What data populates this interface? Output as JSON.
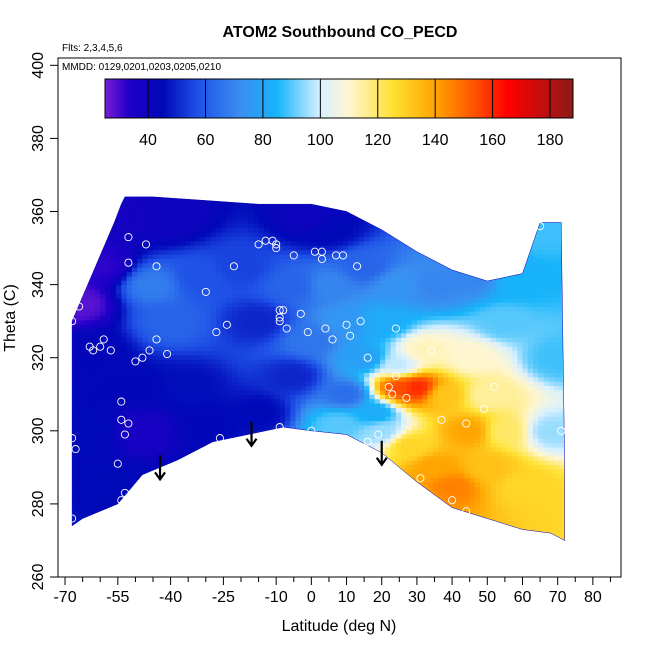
{
  "chart_data": {
    "type": "heatmap",
    "title": "ATOM2 Southbound CO_PECD",
    "subtitle": "Flts: 2,3,4,5,6",
    "annotation": "MMDD: 0129,0201,0203,0205,0210",
    "xlabel": "Latitude (deg N)",
    "ylabel": "Theta (C)",
    "xlim": [
      -72,
      88
    ],
    "ylim": [
      260,
      402
    ],
    "x_ticks": [
      -70,
      -55,
      -40,
      -25,
      -10,
      0,
      10,
      20,
      30,
      40,
      50,
      60,
      70,
      80
    ],
    "x_minor_ticks": [
      -65,
      -60,
      -50,
      -45,
      -35,
      -30,
      -20,
      -15,
      -5,
      5,
      15,
      25,
      35,
      45,
      55,
      65,
      75,
      85
    ],
    "y_ticks": [
      260,
      280,
      300,
      320,
      340,
      360,
      380,
      400
    ],
    "colorbar": {
      "min": 25,
      "max": 188,
      "ticks": [
        40,
        60,
        80,
        100,
        120,
        140,
        160,
        180
      ],
      "stops": [
        {
          "v": 25,
          "c": "#7a1fd8"
        },
        {
          "v": 33,
          "c": "#2200c8"
        },
        {
          "v": 45,
          "c": "#0008b8"
        },
        {
          "v": 57,
          "c": "#1e4fe6"
        },
        {
          "v": 72,
          "c": "#3a8ef0"
        },
        {
          "v": 85,
          "c": "#17b4fa"
        },
        {
          "v": 100,
          "c": "#d8f0ff"
        },
        {
          "v": 110,
          "c": "#fff6d0"
        },
        {
          "v": 125,
          "c": "#ffe234"
        },
        {
          "v": 140,
          "c": "#ffa400"
        },
        {
          "v": 155,
          "c": "#ff4a00"
        },
        {
          "v": 165,
          "c": "#ff0000"
        },
        {
          "v": 188,
          "c": "#8c1a1a"
        }
      ]
    },
    "boundary_top": [
      [
        -68,
        330
      ],
      [
        -56,
        357
      ],
      [
        -54,
        362
      ],
      [
        -53,
        364
      ],
      [
        -45,
        364
      ],
      [
        -30,
        363
      ],
      [
        -15,
        362
      ],
      [
        0,
        362
      ],
      [
        10,
        360
      ],
      [
        20,
        355
      ],
      [
        30,
        349
      ],
      [
        40,
        344
      ],
      [
        50,
        341
      ],
      [
        60,
        343
      ],
      [
        65,
        357
      ],
      [
        71,
        357
      ],
      [
        72,
        290
      ]
    ],
    "boundary_bottom": [
      [
        72,
        270
      ],
      [
        68,
        272
      ],
      [
        60,
        273
      ],
      [
        50,
        276
      ],
      [
        40,
        279
      ],
      [
        30,
        286
      ],
      [
        20,
        294
      ],
      [
        10,
        299
      ],
      [
        0,
        300
      ],
      [
        -8,
        301
      ],
      [
        -18,
        299
      ],
      [
        -28,
        297
      ],
      [
        -38,
        292
      ],
      [
        -48,
        288
      ],
      [
        -55,
        280
      ],
      [
        -65,
        276
      ],
      [
        -68,
        274
      ]
    ],
    "field_points": [
      {
        "x": -66,
        "y": 335,
        "v": 28
      },
      {
        "x": -60,
        "y": 345,
        "v": 32
      },
      {
        "x": -55,
        "y": 358,
        "v": 38
      },
      {
        "x": -62,
        "y": 300,
        "v": 45
      },
      {
        "x": -55,
        "y": 285,
        "v": 45
      },
      {
        "x": -62,
        "y": 322,
        "v": 44
      },
      {
        "x": -50,
        "y": 312,
        "v": 44
      },
      {
        "x": -45,
        "y": 340,
        "v": 68
      },
      {
        "x": -40,
        "y": 330,
        "v": 62
      },
      {
        "x": -32,
        "y": 342,
        "v": 58
      },
      {
        "x": -35,
        "y": 312,
        "v": 46
      },
      {
        "x": -30,
        "y": 302,
        "v": 44
      },
      {
        "x": -20,
        "y": 345,
        "v": 55
      },
      {
        "x": -15,
        "y": 330,
        "v": 50
      },
      {
        "x": -15,
        "y": 305,
        "v": 45
      },
      {
        "x": -5,
        "y": 340,
        "v": 62
      },
      {
        "x": -5,
        "y": 315,
        "v": 50
      },
      {
        "x": 0,
        "y": 358,
        "v": 40
      },
      {
        "x": 0,
        "y": 325,
        "v": 66
      },
      {
        "x": 5,
        "y": 340,
        "v": 70
      },
      {
        "x": 10,
        "y": 330,
        "v": 75
      },
      {
        "x": 10,
        "y": 310,
        "v": 64
      },
      {
        "x": 15,
        "y": 345,
        "v": 62
      },
      {
        "x": 15,
        "y": 320,
        "v": 78
      },
      {
        "x": 18,
        "y": 305,
        "v": 82
      },
      {
        "x": 20,
        "y": 300,
        "v": 95
      },
      {
        "x": 20,
        "y": 330,
        "v": 82
      },
      {
        "x": 25,
        "y": 340,
        "v": 74
      },
      {
        "x": 25,
        "y": 318,
        "v": 98
      },
      {
        "x": 25,
        "y": 312,
        "v": 155
      },
      {
        "x": 30,
        "y": 312,
        "v": 160
      },
      {
        "x": 28,
        "y": 296,
        "v": 128
      },
      {
        "x": 32,
        "y": 322,
        "v": 112
      },
      {
        "x": 35,
        "y": 290,
        "v": 140
      },
      {
        "x": 38,
        "y": 310,
        "v": 132
      },
      {
        "x": 40,
        "y": 285,
        "v": 146
      },
      {
        "x": 45,
        "y": 300,
        "v": 140
      },
      {
        "x": 45,
        "y": 320,
        "v": 110
      },
      {
        "x": 50,
        "y": 290,
        "v": 133
      },
      {
        "x": 50,
        "y": 310,
        "v": 115
      },
      {
        "x": 55,
        "y": 330,
        "v": 90
      },
      {
        "x": 55,
        "y": 300,
        "v": 120
      },
      {
        "x": 60,
        "y": 340,
        "v": 85
      },
      {
        "x": 60,
        "y": 285,
        "v": 128
      },
      {
        "x": 65,
        "y": 355,
        "v": 88
      },
      {
        "x": 68,
        "y": 300,
        "v": 95
      },
      {
        "x": 70,
        "y": 320,
        "v": 88
      },
      {
        "x": 45,
        "y": 342,
        "v": 70
      },
      {
        "x": 35,
        "y": 340,
        "v": 70
      },
      {
        "x": 5,
        "y": 355,
        "v": 45
      },
      {
        "x": -40,
        "y": 358,
        "v": 40
      },
      {
        "x": -48,
        "y": 300,
        "v": 36
      },
      {
        "x": 30,
        "y": 280,
        "v": 140
      },
      {
        "x": 8,
        "y": 302,
        "v": 90
      }
    ],
    "samples": [
      [
        -68,
        330
      ],
      [
        -67,
        336
      ],
      [
        -66,
        334
      ],
      [
        -68,
        298
      ],
      [
        -67,
        295
      ],
      [
        -68,
        276
      ],
      [
        -63,
        323
      ],
      [
        -62,
        322
      ],
      [
        -60,
        323
      ],
      [
        -59,
        325
      ],
      [
        -57,
        322
      ],
      [
        -54,
        308
      ],
      [
        -54,
        303
      ],
      [
        -53,
        299
      ],
      [
        -52,
        302
      ],
      [
        -55,
        291
      ],
      [
        -53,
        283
      ],
      [
        -54,
        281
      ],
      [
        -52,
        353
      ],
      [
        -52,
        346
      ],
      [
        -47,
        351
      ],
      [
        -50,
        319
      ],
      [
        -48,
        320
      ],
      [
        -46,
        322
      ],
      [
        -44,
        325
      ],
      [
        -41,
        321
      ],
      [
        -44,
        345
      ],
      [
        -30,
        338
      ],
      [
        -27,
        327
      ],
      [
        -24,
        329
      ],
      [
        -22,
        345
      ],
      [
        -26,
        298
      ],
      [
        -15,
        351
      ],
      [
        -13,
        352
      ],
      [
        -11,
        352
      ],
      [
        -10,
        351
      ],
      [
        -10,
        350
      ],
      [
        -9,
        331
      ],
      [
        -9,
        333
      ],
      [
        -8,
        333
      ],
      [
        -9,
        330
      ],
      [
        -7,
        328
      ],
      [
        -5,
        348
      ],
      [
        -3,
        332
      ],
      [
        -9,
        301
      ],
      [
        -1,
        327
      ],
      [
        0,
        300
      ],
      [
        1,
        349
      ],
      [
        3,
        349
      ],
      [
        3,
        347
      ],
      [
        4,
        328
      ],
      [
        6,
        325
      ],
      [
        7,
        348
      ],
      [
        9,
        348
      ],
      [
        10,
        329
      ],
      [
        11,
        326
      ],
      [
        13,
        345
      ],
      [
        14,
        330
      ],
      [
        16,
        320
      ],
      [
        19,
        299
      ],
      [
        16,
        297
      ],
      [
        22,
        312
      ],
      [
        23,
        310
      ],
      [
        24,
        328
      ],
      [
        24,
        315
      ],
      [
        27,
        309
      ],
      [
        34,
        322
      ],
      [
        31,
        287
      ],
      [
        37,
        303
      ],
      [
        40,
        281
      ],
      [
        44,
        302
      ],
      [
        44,
        278
      ],
      [
        52,
        312
      ],
      [
        49,
        306
      ],
      [
        65,
        356
      ],
      [
        71,
        300
      ]
    ],
    "arrows": [
      -43,
      -17,
      20
    ]
  }
}
